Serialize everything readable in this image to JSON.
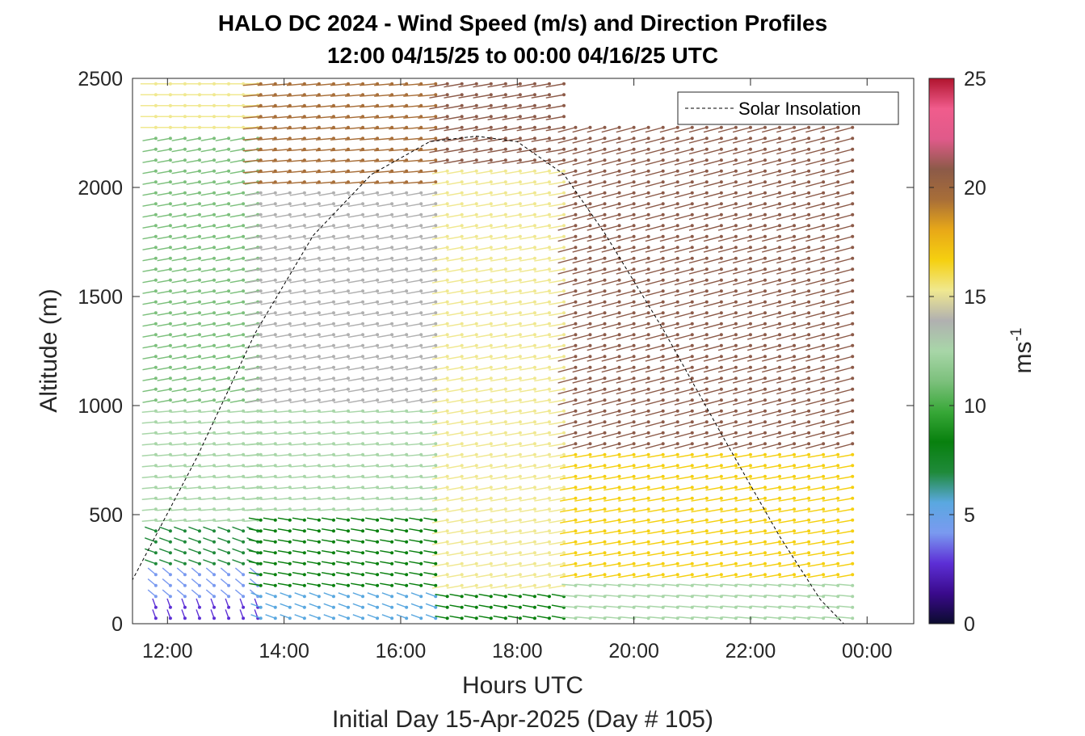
{
  "chart_data": {
    "type": "scatter",
    "subtype": "wind-barb profile (speed colored, direction by arrow)",
    "title": "HALO DC 2024 - Wind Speed (m/s) and Direction Profiles",
    "subtitle": "12:00 04/15/25 to 00:00 04/16/25  UTC",
    "xlabel": "Hours UTC",
    "xlabel2": "Initial Day 15-Apr-2025 (Day # 105)",
    "ylabel": "Altitude (m)",
    "xlim": [
      11.4,
      24.8
    ],
    "ylim": [
      0,
      2500
    ],
    "x_ticks": [
      12,
      14,
      16,
      18,
      20,
      22,
      24
    ],
    "x_tick_labels": [
      "12:00",
      "14:00",
      "16:00",
      "18:00",
      "20:00",
      "22:00",
      "00:00"
    ],
    "y_ticks": [
      0,
      500,
      1000,
      1500,
      2000,
      2500
    ],
    "y_tick_labels": [
      "0",
      "500",
      "1000",
      "1500",
      "2000",
      "2500"
    ],
    "colorbar": {
      "label": "ms",
      "label_superscript": "-1",
      "range": [
        0,
        25
      ],
      "ticks": [
        0,
        5,
        10,
        15,
        20,
        25
      ],
      "tick_labels": [
        "0",
        "5",
        "10",
        "15",
        "20",
        "25"
      ],
      "colors": [
        "#0b0b2e",
        "#3a0a8c",
        "#5d2fd6",
        "#7a9af0",
        "#5aa8e0",
        "#1f8a3a",
        "#08800e",
        "#38a838",
        "#7cc07c",
        "#a8d6a8",
        "#b0b0b0",
        "#f0e890",
        "#f5d010",
        "#e8a818",
        "#a86e38",
        "#8c5a48",
        "#e05a8a",
        "#f05c8c",
        "#b0142e"
      ]
    },
    "legend": {
      "entries": [
        "Solar Insolation"
      ],
      "placement": "top-right"
    },
    "grid": false,
    "solar_insolation": {
      "x": [
        11.3,
        12.5,
        13.5,
        14.5,
        15.5,
        16.5,
        17.3,
        18.0,
        18.8,
        19.5,
        20.5,
        21.5,
        22.5,
        23.2,
        23.6,
        23.8,
        24.7
      ],
      "y": [
        150,
        760,
        1330,
        1780,
        2060,
        2210,
        2235,
        2210,
        2060,
        1790,
        1350,
        870,
        400,
        110,
        0,
        0,
        0
      ]
    },
    "profiles": [
      {
        "x_range": [
          11.8,
          13.6
        ],
        "layers": [
          {
            "altitude": [
              0,
              80
            ],
            "speed": 2.5,
            "direction_deg": 200
          },
          {
            "altitude": [
              80,
              250
            ],
            "speed": 4.5,
            "direction_deg": 230
          },
          {
            "altitude": [
              250,
              450
            ],
            "speed": 7.5,
            "direction_deg": 250
          },
          {
            "altitude": [
              450,
              1000
            ],
            "speed": 12,
            "direction_deg": 275
          },
          {
            "altitude": [
              1000,
              2250
            ],
            "speed": 11,
            "direction_deg": 280
          },
          {
            "altitude": [
              2250,
              2500
            ],
            "speed": 15,
            "direction_deg": 270
          }
        ]
      },
      {
        "x_range": [
          13.6,
          16.8
        ],
        "layers": [
          {
            "altitude": [
              0,
              150
            ],
            "speed": 5,
            "direction_deg": 250
          },
          {
            "altitude": [
              150,
              500
            ],
            "speed": 8.5,
            "direction_deg": 260
          },
          {
            "altitude": [
              500,
              1000
            ],
            "speed": 12.5,
            "direction_deg": 275
          },
          {
            "altitude": [
              1000,
              2000
            ],
            "speed": 14,
            "direction_deg": 280
          },
          {
            "altitude": [
              2000,
              2500
            ],
            "speed": 20,
            "direction_deg": 275
          }
        ]
      },
      {
        "x_range": [
          16.8,
          19.0
        ],
        "layers": [
          {
            "altitude": [
              0,
              150
            ],
            "speed": 9,
            "direction_deg": 260
          },
          {
            "altitude": [
              150,
              2100
            ],
            "speed": 15,
            "direction_deg": 280
          },
          {
            "altitude": [
              2100,
              2500
            ],
            "speed": 21,
            "direction_deg": 280
          }
        ]
      },
      {
        "x_range": [
          19.0,
          23.9
        ],
        "layers": [
          {
            "altitude": [
              0,
              200
            ],
            "speed": 12,
            "direction_deg": 265
          },
          {
            "altitude": [
              200,
              800
            ],
            "speed": 16,
            "direction_deg": 280
          },
          {
            "altitude": [
              800,
              2300
            ],
            "speed": 21,
            "direction_deg": 285
          }
        ]
      }
    ]
  }
}
